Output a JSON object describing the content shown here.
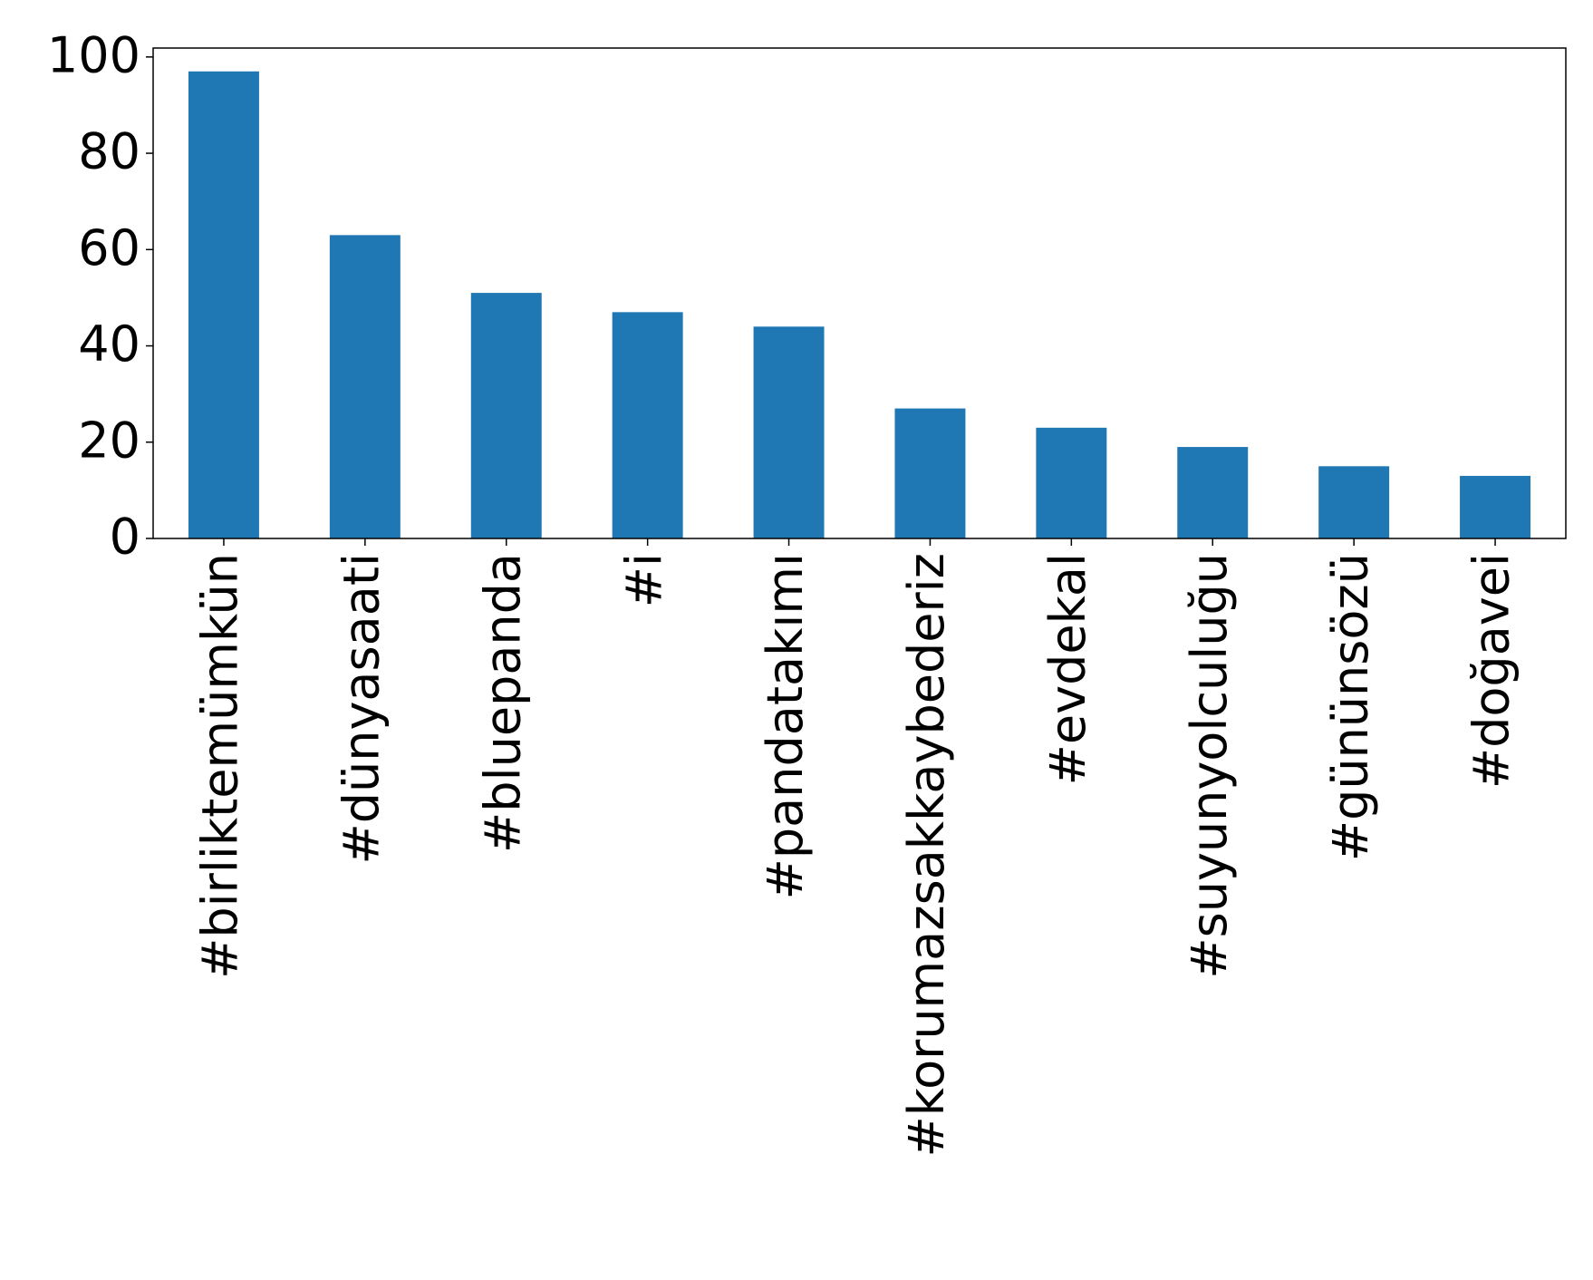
{
  "chart_data": {
    "type": "bar",
    "categories": [
      "#birliktemümkün",
      "#dünyasaati",
      "#bluepanda",
      "#i",
      "#pandatakımı",
      "#korumazsakkaybederiz",
      "#evdekal",
      "#suyunyolculuğu",
      "#gününsözü",
      "#doğavei"
    ],
    "values": [
      97,
      63,
      51,
      47,
      44,
      27,
      23,
      19,
      15,
      13
    ],
    "color": "#1f77b4",
    "ylim": [
      0,
      101.85
    ],
    "yticks": [
      0,
      20,
      40,
      60,
      80,
      100
    ],
    "grid": false
  }
}
